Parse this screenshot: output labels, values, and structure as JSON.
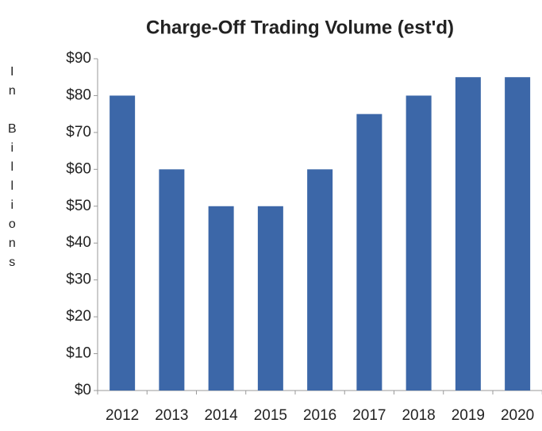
{
  "chart_data": {
    "type": "bar",
    "title": "Charge-Off Trading Volume (est'd)",
    "y_label": "In Billions",
    "categories": [
      "2012",
      "2013",
      "2014",
      "2015",
      "2016",
      "2017",
      "2018",
      "2019",
      "2020"
    ],
    "values": [
      80,
      60,
      50,
      50,
      60,
      75,
      80,
      85,
      85
    ],
    "color": "#3c67a8",
    "ylim": [
      0,
      90
    ],
    "yticks": [
      {
        "value": 0,
        "label": "$0"
      },
      {
        "value": 10,
        "label": "$10"
      },
      {
        "value": 20,
        "label": "$20"
      },
      {
        "value": 30,
        "label": "$30"
      },
      {
        "value": 40,
        "label": "$40"
      },
      {
        "value": 50,
        "label": "$50"
      },
      {
        "value": 60,
        "label": "$60"
      },
      {
        "value": 70,
        "label": "$70"
      },
      {
        "value": 80,
        "label": "$80"
      },
      {
        "value": 90,
        "label": "$90"
      }
    ],
    "grid": false
  }
}
